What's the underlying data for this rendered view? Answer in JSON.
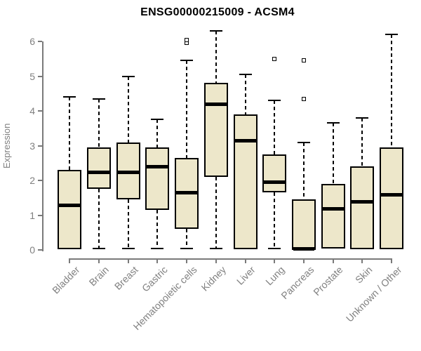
{
  "title": "ENSG00000215009 - ACSM4",
  "colors": {
    "box_fill": "#EDE7CA",
    "box_border": "#000000",
    "median": "#000000",
    "axis": "#7A7A7A",
    "axis_text": "#808080",
    "title_text": "#000000",
    "background": "#FFFFFF"
  },
  "chart_data": {
    "type": "boxplot",
    "title": "ENSG00000215009 - ACSM4",
    "xlabel": "",
    "ylabel": "Expression",
    "ylim": [
      0,
      6.45
    ],
    "yticks": [
      0,
      1,
      2,
      3,
      4,
      5,
      6
    ],
    "grid": false,
    "legend": "none",
    "categories": [
      "Bladder",
      "Brain",
      "Breast",
      "Gastric",
      "Hematopoietic cells",
      "Kidney",
      "Liver",
      "Lung",
      "Pancreas",
      "Prostate",
      "Skin",
      "Unknown / Other"
    ],
    "series": [
      {
        "category": "Bladder",
        "min": 0.03,
        "q1": 0.03,
        "median": 1.3,
        "q3": 2.3,
        "max": 4.4,
        "outliers": []
      },
      {
        "category": "Brain",
        "min": 0.05,
        "q1": 1.75,
        "median": 2.25,
        "q3": 2.95,
        "max": 4.35,
        "outliers": []
      },
      {
        "category": "Breast",
        "min": 0.05,
        "q1": 1.45,
        "median": 2.25,
        "q3": 3.1,
        "max": 5.0,
        "outliers": []
      },
      {
        "category": "Gastric",
        "min": 0.05,
        "q1": 1.15,
        "median": 2.4,
        "q3": 2.95,
        "max": 3.75,
        "outliers": []
      },
      {
        "category": "Hematopoietic cells",
        "min": 0.05,
        "q1": 0.6,
        "median": 1.65,
        "q3": 2.65,
        "max": 5.45,
        "outliers": [
          5.95,
          6.05
        ]
      },
      {
        "category": "Kidney",
        "min": 0.05,
        "q1": 2.1,
        "median": 4.2,
        "q3": 4.8,
        "max": 6.3,
        "outliers": []
      },
      {
        "category": "Liver",
        "min": 0.02,
        "q1": 0.02,
        "median": 3.15,
        "q3": 3.9,
        "max": 5.05,
        "outliers": []
      },
      {
        "category": "Lung",
        "min": 0.05,
        "q1": 1.65,
        "median": 1.95,
        "q3": 2.75,
        "max": 4.3,
        "outliers": [
          5.5
        ]
      },
      {
        "category": "Pancreas",
        "min": 0.0,
        "q1": 0.0,
        "median": 0.05,
        "q3": 1.45,
        "max": 3.1,
        "outliers": [
          4.35,
          5.45
        ]
      },
      {
        "category": "Prostate",
        "min": 0.04,
        "q1": 0.04,
        "median": 1.2,
        "q3": 1.9,
        "max": 3.65,
        "outliers": []
      },
      {
        "category": "Skin",
        "min": 0.03,
        "q1": 0.03,
        "median": 1.4,
        "q3": 2.4,
        "max": 3.8,
        "outliers": []
      },
      {
        "category": "Unknown / Other",
        "min": 0.02,
        "q1": 0.02,
        "median": 1.6,
        "q3": 2.95,
        "max": 6.2,
        "outliers": []
      }
    ]
  }
}
